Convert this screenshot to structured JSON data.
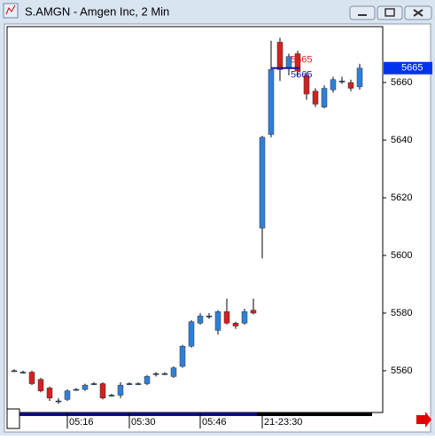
{
  "chart_data": {
    "type": "candlestick",
    "title": "S.AMGN - Amgen Inc, 2 Min",
    "categories": [
      null,
      null,
      null,
      null,
      null,
      null,
      "05:16",
      null,
      null,
      null,
      null,
      null,
      null,
      "05:30",
      null,
      null,
      null,
      null,
      null,
      null,
      null,
      "05:46",
      null,
      null,
      null,
      null,
      null,
      null,
      "21-23:30",
      null,
      null,
      null,
      null,
      null,
      null,
      null,
      null,
      null,
      null,
      null
    ],
    "open": [
      5560,
      5559.5,
      5559.5,
      5557,
      5554,
      5549.5,
      5550,
      5553.5,
      5553.5,
      5555.5,
      5555.5,
      5551.5,
      5551.5,
      5555.5,
      5555.5,
      5555.5,
      5559,
      5559,
      5558,
      5561.5,
      5568.5,
      5576.5,
      5579,
      5574,
      5580.5,
      5576.5,
      5576.5,
      5581,
      5609.5,
      5642,
      5674,
      5665,
      5670,
      5662.5,
      5657,
      5651.5,
      5657.5,
      5660.5,
      5660,
      5658.5
    ],
    "high": [
      5560.5,
      5560,
      5560,
      5557.5,
      5554.5,
      5550.5,
      5553.5,
      5554,
      5555.5,
      5556,
      5556,
      5552,
      5556,
      5556,
      5556,
      5558.5,
      5559.5,
      5559.5,
      5561.5,
      5569,
      5577.5,
      5580,
      5580,
      5581,
      5585,
      5577,
      5581.5,
      5585,
      5641.5,
      5674.5,
      5675.5,
      5670,
      5671,
      5663.5,
      5658,
      5659,
      5662,
      5662,
      5661,
      5666.5
    ],
    "low": [
      5559.5,
      5559,
      5555,
      5552.5,
      5549.5,
      5548.5,
      5549.5,
      5553,
      5553,
      5555,
      5550,
      5551,
      5550.5,
      5555,
      5555,
      5555,
      5558,
      5558.5,
      5557.5,
      5561,
      5568,
      5576,
      5578,
      5572.5,
      5576,
      5574.5,
      5576,
      5579.5,
      5599,
      5641,
      5660.5,
      5662.5,
      5662,
      5654,
      5651.5,
      5651,
      5656.5,
      5659.5,
      5657,
      5657.5
    ],
    "close": [
      5560,
      5559.5,
      5555.5,
      5553,
      5550.5,
      5549.5,
      5553,
      5553.5,
      5555,
      5555.5,
      5550.5,
      5551.5,
      5555,
      5555.5,
      5555.5,
      5558,
      5559,
      5559,
      5561,
      5568.5,
      5577,
      5579,
      5579,
      5580.5,
      5576.5,
      5575.5,
      5580.5,
      5580,
      5641,
      5664.5,
      5664.5,
      5669,
      5664,
      5656,
      5652.5,
      5658,
      5661,
      5660.5,
      5658,
      5665
    ],
    "up_color": "#2f7fd8",
    "down_color": "#d42020",
    "ylim": [
      5545.5,
      5679.4
    ],
    "yticks": [
      5560,
      5580,
      5600,
      5620,
      5640,
      5660
    ],
    "last_price": 5665,
    "price_labels": [
      {
        "value": 5665,
        "color": "#e02020"
      },
      {
        "value": 5665,
        "color": "#2020c8"
      }
    ]
  }
}
